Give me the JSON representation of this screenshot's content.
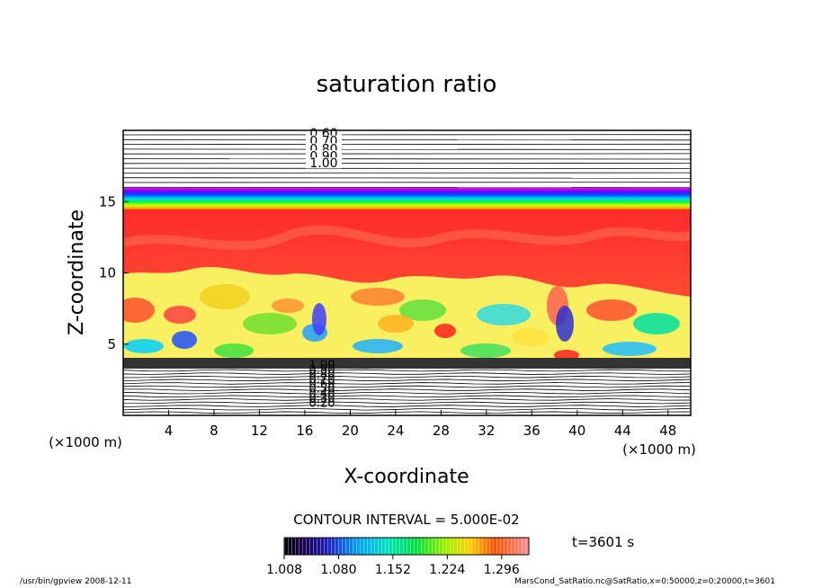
{
  "chart_data": {
    "type": "heatmap",
    "title": "saturation ratio",
    "xlabel": "X-coordinate",
    "ylabel": "Z-coordinate",
    "x_unit": "(×1000 m)",
    "z_unit": "(×1000 m)",
    "xlim": [
      0,
      50
    ],
    "ylim": [
      0,
      20
    ],
    "x_ticks": [
      "4",
      "8",
      "12",
      "16",
      "20",
      "24",
      "28",
      "32",
      "36",
      "40",
      "44",
      "48"
    ],
    "y_ticks": [
      "5",
      "10",
      "15"
    ],
    "contour_labels_upper": [
      "0.60",
      "0.70",
      "0.80",
      "0.90",
      "1.00"
    ],
    "contour_labels_lower": [
      "1.00",
      "0.90",
      "0.80",
      "0.70",
      "0.60",
      "0.50",
      "0.40",
      "0.30",
      "0.20"
    ],
    "contour_interval_text": "CONTOUR INTERVAL = 5.000E-02",
    "time_text": "t=3601 s",
    "colorbar": {
      "min": 1.008,
      "max": 1.332,
      "tick_labels": [
        "1.008",
        "1.080",
        "1.152",
        "1.224",
        "1.296"
      ]
    },
    "footer_left": "/usr/bin/gpview   2008-12-11",
    "footer_right": "MarsCond_SatRatio.nc@SatRatio,x=0:50000,z=0:20000,t=3601"
  }
}
